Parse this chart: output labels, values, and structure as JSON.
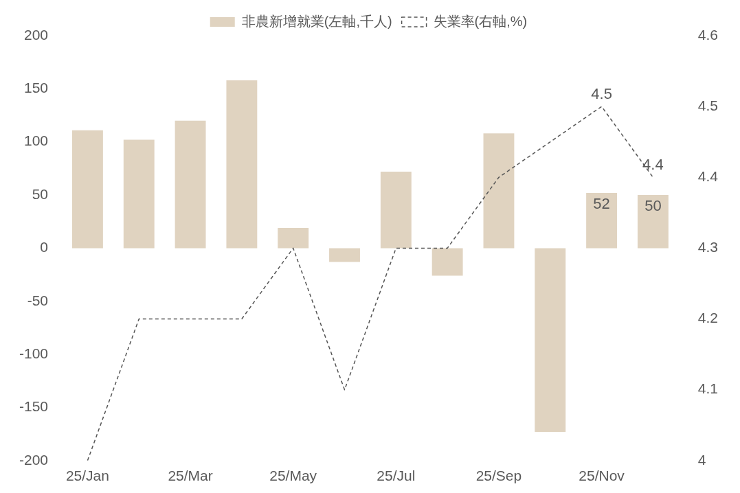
{
  "chart_data": {
    "type": "bar",
    "categories": [
      "25/Jan",
      null,
      "25/Mar",
      null,
      "25/May",
      null,
      "25/Jul",
      null,
      "25/Sep",
      null,
      "25/Nov",
      null
    ],
    "series": [
      {
        "name": "非農新增就業(左軸,千人)",
        "color": "#e0d3c0",
        "values": [
          111,
          102,
          120,
          158,
          19,
          -13,
          72,
          -26,
          108,
          -173,
          52,
          50
        ],
        "value_labels": [
          null,
          null,
          null,
          null,
          null,
          null,
          null,
          null,
          null,
          null,
          "52",
          "50"
        ]
      },
      {
        "name": "失業率(右軸,%)",
        "type": "line",
        "axis": "y2",
        "color": "#555555",
        "line_style": "dashed",
        "marker": "none",
        "values": [
          4.0,
          4.2,
          4.2,
          4.2,
          4.3,
          4.1,
          4.3,
          4.3,
          4.4,
          null,
          4.5,
          4.4
        ],
        "value_labels": [
          null,
          null,
          null,
          null,
          null,
          null,
          null,
          null,
          null,
          null,
          "4.5",
          "4.4"
        ]
      }
    ],
    "ylim": [
      -200,
      200
    ],
    "yticks": [
      -200,
      -150,
      -100,
      -50,
      0,
      50,
      100,
      150,
      200
    ],
    "y2lim": [
      4,
      4.6
    ],
    "y2ticks": [
      4,
      4.1,
      4.2,
      4.3,
      4.4,
      4.5,
      4.6
    ],
    "grid": false,
    "legend": "top"
  }
}
